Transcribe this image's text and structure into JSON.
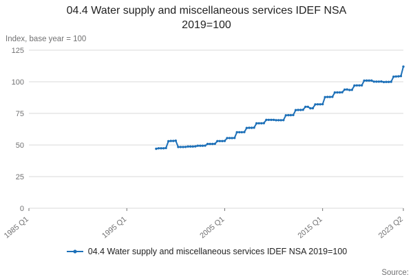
{
  "title": "04.4 Water supply and miscellaneous services IDEF NSA 2019=100",
  "axis_note": "Index, base year = 100",
  "source_label": "Source:",
  "legend": {
    "label": "04.4 Water supply and miscellaneous services IDEF NSA 2019=100"
  },
  "colors": {
    "line": "#1d70b8",
    "grid": "#d9d9d9",
    "axis_text": "#707071",
    "title_text": "#222222"
  },
  "chart_data": {
    "type": "line",
    "title": "04.4 Water supply and miscellaneous services IDEF NSA 2019=100",
    "xlabel": "",
    "ylabel": "Index, base year = 100",
    "ylim": [
      0,
      125
    ],
    "yticks": [
      0,
      25,
      50,
      75,
      100,
      125
    ],
    "xticks": [
      "1985 Q1",
      "1995 Q1",
      "2005 Q1",
      "2015 Q1",
      "2023 Q2"
    ],
    "xtick_positions": [
      1985.0,
      1995.0,
      2005.0,
      2015.0,
      2023.25
    ],
    "x_range": [
      1985.0,
      2023.25
    ],
    "grid": true,
    "legend_position": "bottom",
    "series": [
      {
        "name": "04.4 Water supply and miscellaneous services IDEF NSA 2019=100",
        "x_start": 1998.0,
        "x_step": 0.25,
        "start_label": "1998 Q1",
        "end_label": "2023 Q2",
        "values": [
          47.0,
          47.4,
          47.4,
          47.4,
          47.6,
          53.0,
          53.2,
          53.2,
          53.4,
          48.4,
          48.4,
          48.4,
          48.5,
          48.8,
          48.8,
          48.8,
          48.9,
          49.4,
          49.4,
          49.4,
          49.5,
          50.8,
          50.8,
          50.8,
          50.9,
          53.1,
          53.1,
          53.1,
          53.2,
          55.5,
          55.5,
          55.5,
          55.6,
          60.1,
          60.1,
          60.1,
          60.2,
          63.5,
          63.6,
          63.6,
          63.7,
          67.1,
          67.2,
          67.2,
          67.3,
          69.9,
          69.9,
          69.9,
          69.9,
          69.6,
          69.6,
          69.6,
          69.7,
          73.5,
          73.6,
          73.6,
          73.7,
          77.6,
          77.7,
          77.7,
          77.8,
          80.2,
          80.2,
          79.0,
          79.1,
          82.1,
          82.2,
          82.2,
          82.3,
          87.9,
          88.0,
          88.0,
          88.1,
          91.5,
          91.6,
          91.6,
          91.7,
          93.8,
          93.9,
          93.5,
          93.6,
          97.0,
          97.1,
          97.1,
          97.2,
          100.9,
          101.0,
          101.0,
          101.0,
          100.1,
          100.1,
          100.1,
          100.2,
          99.8,
          99.9,
          99.9,
          100.0,
          104.0,
          104.2,
          104.3,
          104.5,
          112.0
        ]
      }
    ]
  }
}
